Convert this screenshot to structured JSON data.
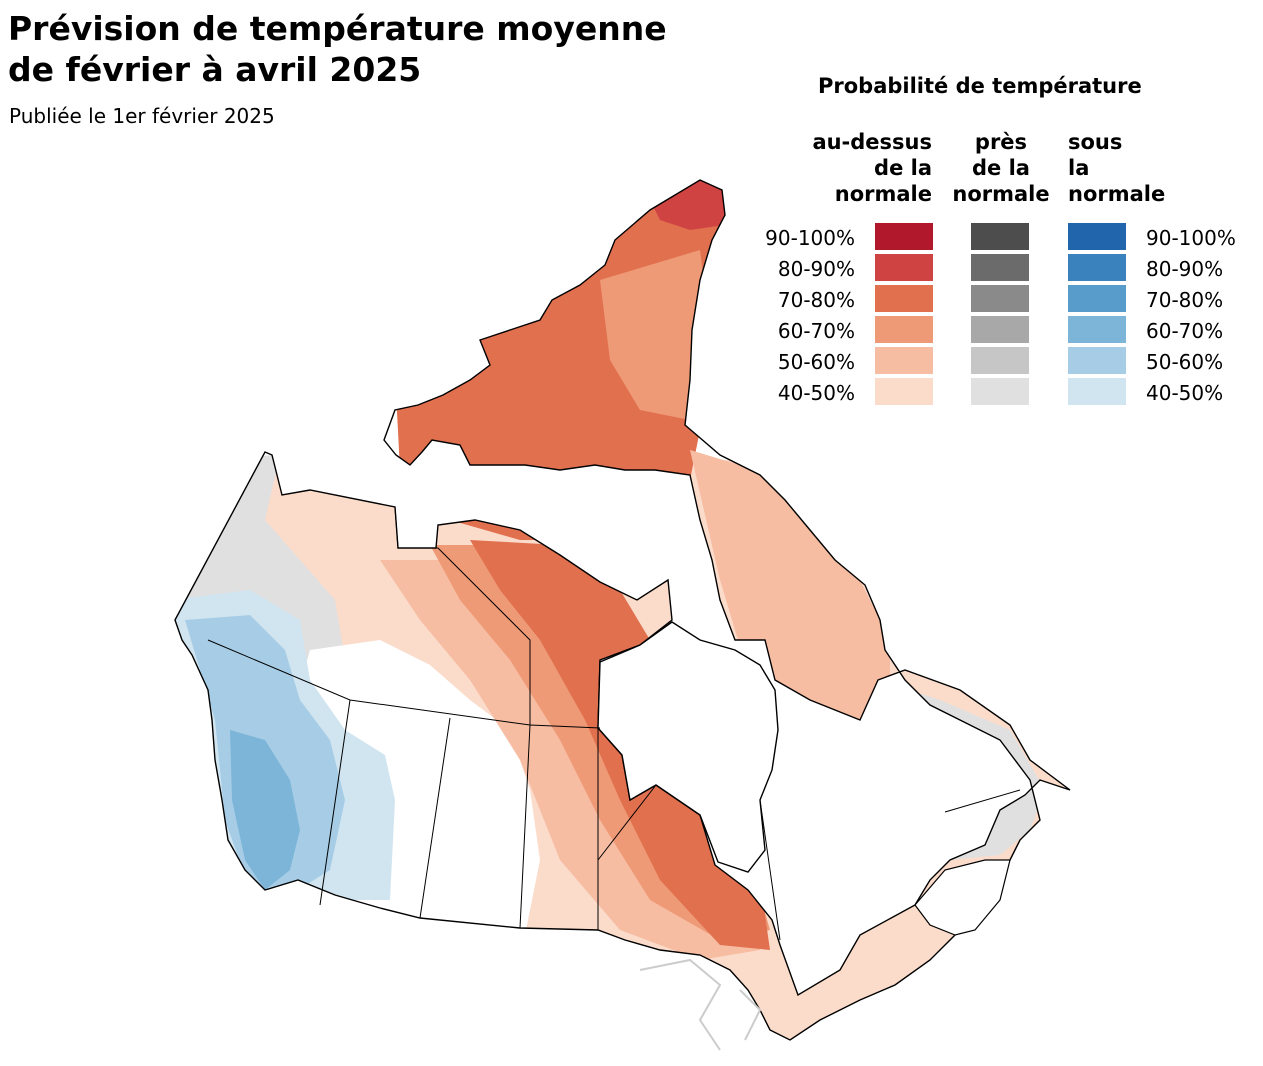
{
  "title": {
    "line1": "Prévision de température moyenne",
    "line2": "de février à avril 2025"
  },
  "subtitle": "Publiée le 1er février 2025",
  "legend": {
    "title": "Probabilité de température",
    "above": {
      "line1": "au-dessus",
      "line2": "de la",
      "line3": "normale"
    },
    "near": {
      "line1": "près",
      "line2": "de la",
      "line3": "normale"
    },
    "below": {
      "line1": "sous",
      "line2": "la",
      "line3": "normale"
    },
    "rows": [
      "90-100%",
      "80-90%",
      "70-80%",
      "60-70%",
      "50-60%",
      "40-50%"
    ],
    "colors": {
      "above": [
        "#b2182b",
        "#cf4443",
        "#e1704f",
        "#ef9a76",
        "#f7bda3",
        "#fbdccb"
      ],
      "near": [
        "#4d4d4d",
        "#6b6b6b",
        "#8a8a8a",
        "#a8a8a8",
        "#c6c6c6",
        "#e0e0e0"
      ],
      "below": [
        "#2166ac",
        "#3a82bd",
        "#579ccb",
        "#7db5d9",
        "#a7cde6",
        "#d1e5f0"
      ]
    }
  },
  "map": {
    "categories": {
      "above_80_90": "#cf4443",
      "above_70_80": "#e1704f",
      "above_60_70": "#ef9a76",
      "above_50_60": "#f7bda3",
      "above_40_50": "#fbdccb",
      "near_40_50": "#e0e0e0",
      "below_60_70": "#7db5d9",
      "below_50_60": "#a7cde6",
      "below_40_50": "#d1e5f0"
    }
  }
}
